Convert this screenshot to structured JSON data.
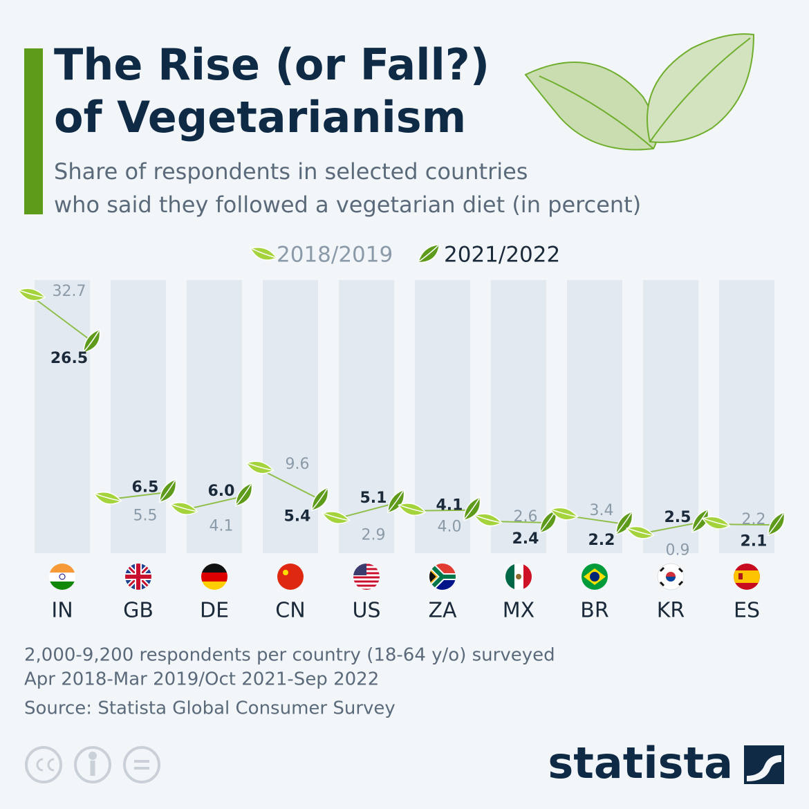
{
  "chart_data": {
    "type": "leafslope",
    "title": [
      "The Rise (or Fall?)",
      "of Vegetarianism"
    ],
    "subtitle": [
      "Share of respondents in selected countries",
      "who said they followed a vegetarian diet (in percent)"
    ],
    "categories": [
      "IN",
      "GB",
      "DE",
      "CN",
      "US",
      "ZA",
      "MX",
      "BR",
      "KR",
      "ES"
    ],
    "series": [
      {
        "name": "2018/2019",
        "color": "#a4d33c",
        "values": [
          32.7,
          5.5,
          4.1,
          9.6,
          2.9,
          4.0,
          2.6,
          3.4,
          0.9,
          2.2
        ],
        "value_labels": [
          "32.7",
          "5.5",
          "4.1",
          "9.6",
          "2.9",
          "4.0",
          "2.6",
          "3.4",
          "0.9",
          "2.2"
        ]
      },
      {
        "name": "2021/2022",
        "color": "#5e9b1b",
        "values": [
          26.5,
          6.5,
          6.0,
          5.4,
          5.1,
          4.1,
          2.4,
          2.2,
          2.5,
          2.1
        ],
        "value_labels": [
          "26.5",
          "6.5",
          "6.0",
          "5.4",
          "5.1",
          "4.1",
          "2.4",
          "2.2",
          "2.5",
          "2.1"
        ]
      }
    ],
    "notes": [
      "2,000-9,200 respondents per country (18-64 y/o) surveyed",
      "Apr 2018-Mar 2019/Oct 2021-Sep 2022"
    ],
    "source": "Source: Statista Global Consumer Survey"
  },
  "brand": "statista"
}
